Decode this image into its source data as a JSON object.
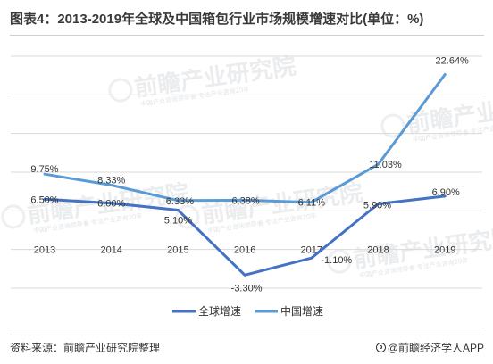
{
  "title": "图表4：2013-2019年全球及中国箱包行业市场规模增速对比(单位：%)",
  "source": "资料来源：前瞻产业研究院整理",
  "brand": "@前瞻经济学人APP",
  "watermark": {
    "text": "前瞻产业研究院",
    "sub": "中国产业咨询领导者·专注产业咨询20年"
  },
  "chart_data": {
    "type": "line",
    "title": "图表4：2013-2019年全球及中国箱包行业市场规模增速对比(单位：%)",
    "categories": [
      "2013",
      "2014",
      "2015",
      "2016",
      "2017",
      "2018",
      "2019"
    ],
    "ylim": [
      -5,
      25
    ],
    "grid": true,
    "legend_position": "bottom",
    "series": [
      {
        "name": "全球增速",
        "color": "#4472c4",
        "values": [
          6.5,
          6.0,
          5.1,
          -3.3,
          -1.1,
          5.9,
          6.9
        ],
        "labels": [
          "6.50%",
          "6.00%",
          "5.10%",
          "-3.30%",
          "-1.10%",
          "5.90%",
          "6.90%"
        ]
      },
      {
        "name": "中国增速",
        "color": "#5b9bd5",
        "values": [
          9.75,
          8.33,
          6.33,
          6.38,
          6.11,
          11.03,
          22.64
        ],
        "labels": [
          "9.75%",
          "8.33%",
          "6.33%",
          "6.38%",
          "6.11%",
          "11.03%",
          "22.64%"
        ]
      }
    ]
  }
}
